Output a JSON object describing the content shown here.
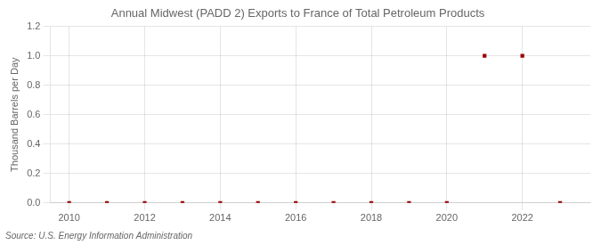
{
  "chart_data": {
    "type": "scatter",
    "title": "Annual Midwest (PADD 2) Exports to France of Total Petroleum Products",
    "ylabel": "Thousand Barrels per Day",
    "annotation": "Source: U.S. Energy Information Administration",
    "x": [
      2010,
      2011,
      2012,
      2013,
      2014,
      2015,
      2016,
      2017,
      2018,
      2019,
      2020,
      2021,
      2022,
      2023
    ],
    "values": [
      0.0,
      0.0,
      0.0,
      0.0,
      0.0,
      0.0,
      0.0,
      0.0,
      0.0,
      0.0,
      0.0,
      1.0,
      1.0,
      0.0
    ],
    "color": "#990000",
    "marker": "square",
    "xlim": [
      2009.5,
      2023.8
    ],
    "ylim": [
      0.0,
      1.2
    ],
    "xticks": [
      2010,
      2012,
      2014,
      2016,
      2018,
      2020,
      2022
    ],
    "yticks": [
      {
        "value": 0.0,
        "label": "0.0"
      },
      0.2,
      0.4,
      0.6,
      0.8,
      {
        "value": 1.0,
        "label": "1.0"
      },
      1.2
    ],
    "grid": true
  }
}
